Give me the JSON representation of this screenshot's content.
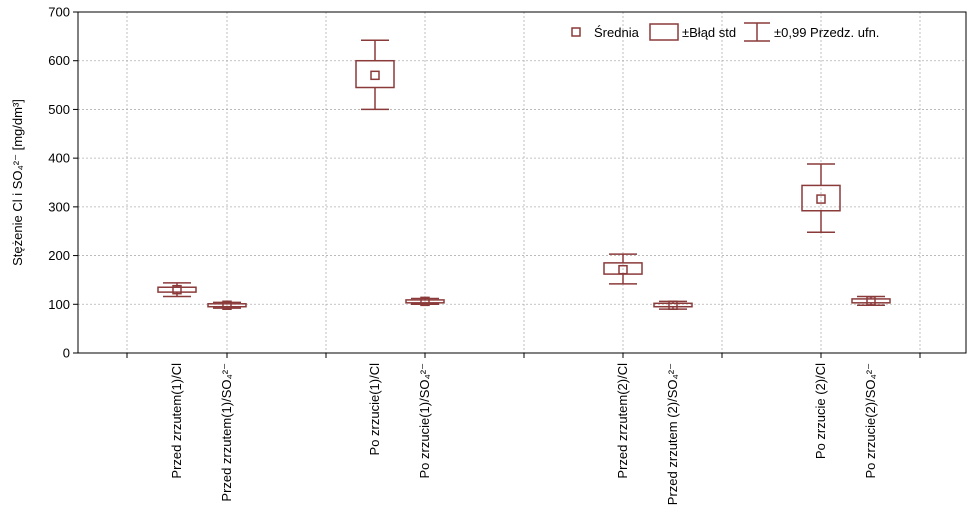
{
  "chart_data": {
    "type": "box",
    "categories": [
      "Przed zrzutem(1)/Cl",
      "Przed zrzutem(1)/SO₄²⁻",
      "Po zrzucie(1)/Cl",
      "Po zrzucie(1)/SO₄²⁻",
      "Przed zrzutem(2)/Cl",
      "Przed zrzutem (2)/SO₄²⁻",
      "Po zrzucie (2)/Cl",
      "Po zrzucie(2)/SO₄²⁻"
    ],
    "boxes": [
      {
        "mean": 130,
        "se_low": 125,
        "se_high": 135,
        "ci_low": 116,
        "ci_high": 144
      },
      {
        "mean": 98,
        "se_low": 95,
        "se_high": 101,
        "ci_low": 92,
        "ci_high": 104
      },
      {
        "mean": 570,
        "se_low": 545,
        "se_high": 600,
        "ci_low": 500,
        "ci_high": 642
      },
      {
        "mean": 106,
        "se_low": 103,
        "se_high": 109,
        "ci_low": 100,
        "ci_high": 112
      },
      {
        "mean": 171,
        "se_low": 162,
        "se_high": 185,
        "ci_low": 142,
        "ci_high": 203
      },
      {
        "mean": 98,
        "se_low": 95,
        "se_high": 102,
        "ci_low": 90,
        "ci_high": 106
      },
      {
        "mean": 316,
        "se_low": 292,
        "se_high": 344,
        "ci_low": 248,
        "ci_high": 388
      },
      {
        "mean": 107,
        "se_low": 103,
        "se_high": 111,
        "ci_low": 98,
        "ci_high": 116
      }
    ],
    "ylabel": "Stężenie Cl i SO₄²⁻ [mg/dm³]",
    "ylim": [
      0,
      700
    ],
    "yticks": [
      0,
      100,
      200,
      300,
      400,
      500,
      600,
      700
    ],
    "grid": true,
    "legend": [
      "Średnia",
      "±Błąd std",
      "±0,99 Przedz. ufn."
    ],
    "legend_position": "top-right",
    "series_color": "#8b3a3a"
  }
}
